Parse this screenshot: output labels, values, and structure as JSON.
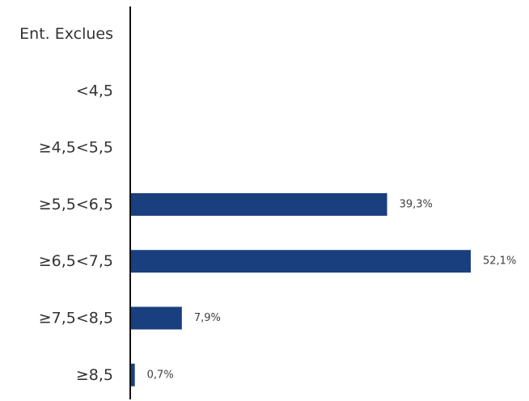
{
  "chart_data": {
    "type": "bar",
    "orientation": "horizontal",
    "categories": [
      "Ent. Exclues",
      "<4,5",
      "≥4,5<5,5",
      "≥5,5<6,5",
      "≥6,5<7,5",
      "≥7,5<8,5",
      "≥8,5"
    ],
    "values": [
      0,
      0,
      0,
      39.3,
      52.1,
      7.9,
      0.7
    ],
    "value_labels": [
      "",
      "",
      "",
      "39,3%",
      "52,1%",
      "7,9%",
      "0,7%"
    ],
    "unit": "%",
    "xlim": [
      0,
      54
    ],
    "grid": false,
    "legend": "none",
    "bar_color": "#1a3f7f",
    "axis_color": "#111111"
  }
}
